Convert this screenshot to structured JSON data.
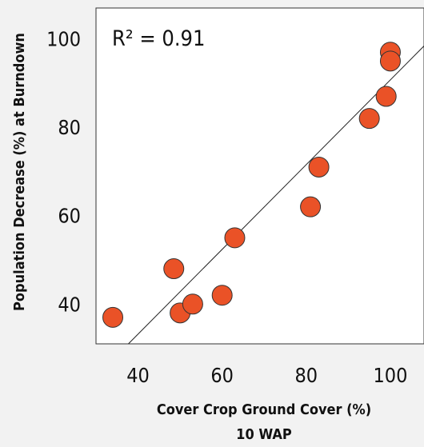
{
  "chart_data": {
    "type": "scatter",
    "xlabel": "Cover Crop Ground Cover (%)",
    "xlabel_line2": "10 WAP",
    "ylabel": "Population Decrease (%) at Burndown",
    "annotation": "R² = 0.91",
    "xlim": [
      30,
      108
    ],
    "ylim": [
      31,
      107
    ],
    "xticks": [
      40,
      60,
      80,
      100
    ],
    "yticks": [
      40,
      60,
      80,
      100
    ],
    "points": [
      {
        "x": 34,
        "y": 37
      },
      {
        "x": 48.5,
        "y": 48
      },
      {
        "x": 50,
        "y": 38
      },
      {
        "x": 53,
        "y": 40
      },
      {
        "x": 60,
        "y": 42
      },
      {
        "x": 63,
        "y": 55
      },
      {
        "x": 81,
        "y": 62
      },
      {
        "x": 83,
        "y": 71
      },
      {
        "x": 95,
        "y": 82
      },
      {
        "x": 99,
        "y": 87
      },
      {
        "x": 100,
        "y": 97
      },
      {
        "x": 100,
        "y": 95
      }
    ],
    "trendline": {
      "x": [
        37.7,
        108
      ],
      "y": [
        31,
        98.4
      ]
    },
    "grid": false,
    "legend": "none",
    "marker_color": "#ea5227",
    "marker_edge_color": "#333333",
    "line_color": "#222222"
  }
}
